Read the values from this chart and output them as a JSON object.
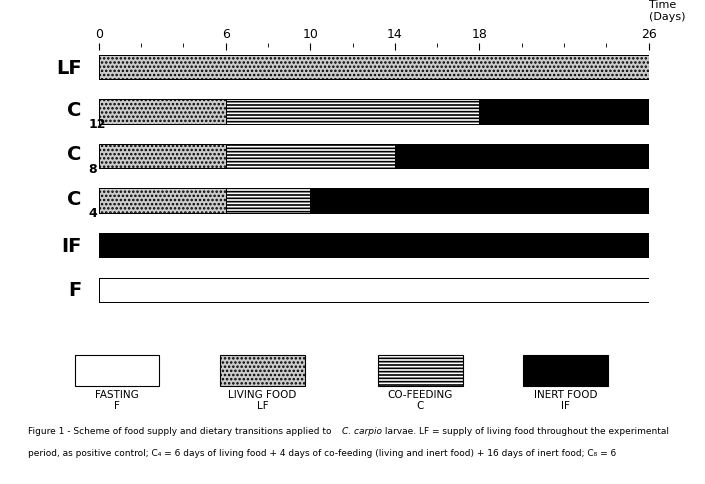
{
  "total_days": 26,
  "rows": [
    {
      "label": "LF",
      "label_sub": null,
      "segments": [
        {
          "start": 0,
          "end": 26,
          "type": "living"
        }
      ]
    },
    {
      "label": "C",
      "label_sub": "12",
      "segments": [
        {
          "start": 0,
          "end": 6,
          "type": "living"
        },
        {
          "start": 6,
          "end": 18,
          "type": "cofeeding"
        },
        {
          "start": 18,
          "end": 26,
          "type": "inert"
        }
      ]
    },
    {
      "label": "C",
      "label_sub": "8",
      "segments": [
        {
          "start": 0,
          "end": 6,
          "type": "living"
        },
        {
          "start": 6,
          "end": 14,
          "type": "cofeeding"
        },
        {
          "start": 14,
          "end": 26,
          "type": "inert"
        }
      ]
    },
    {
      "label": "C",
      "label_sub": "4",
      "segments": [
        {
          "start": 0,
          "end": 6,
          "type": "living"
        },
        {
          "start": 6,
          "end": 10,
          "type": "cofeeding"
        },
        {
          "start": 10,
          "end": 26,
          "type": "inert"
        }
      ]
    },
    {
      "label": "IF",
      "label_sub": null,
      "segments": [
        {
          "start": 0,
          "end": 26,
          "type": "inert"
        }
      ]
    },
    {
      "label": "F",
      "label_sub": null,
      "segments": [
        {
          "start": 0,
          "end": 26,
          "type": "fasting"
        }
      ]
    }
  ],
  "colors": {
    "fasting": "#ffffff",
    "living": "#cccccc",
    "cofeeding": "#ffffff",
    "inert": "#000000"
  },
  "hatch": {
    "fasting": "",
    "living": "....",
    "cofeeding": "-----",
    "inert": ""
  },
  "axis_ticks": [
    0,
    6,
    10,
    14,
    18,
    26
  ],
  "minor_tick_step": 2,
  "bar_height": 0.55,
  "legend_items": [
    {
      "label_line1": "FASTING",
      "label_line2": "F",
      "type": "fasting"
    },
    {
      "label_line1": "LIVING FOOD",
      "label_line2": "LF",
      "type": "living"
    },
    {
      "label_line1": "CO-FEEDING",
      "label_line2": "C",
      "type": "cofeeding"
    },
    {
      "label_line1": "INERT FOOD",
      "label_line2": "IF",
      "type": "inert"
    }
  ],
  "caption_line1": "Figure 1 - Scheme of food supply and dietary transitions applied to ",
  "caption_italic": "C. carpio",
  "caption_line1_end": " larvae. LF = supply of living food throughout the experimental",
  "caption_line2": "period, as positive control; C₄ = 6 days of living food + 4 days of co-feeding (living and inert food) + 16 days of inert food; C₈ = 6"
}
